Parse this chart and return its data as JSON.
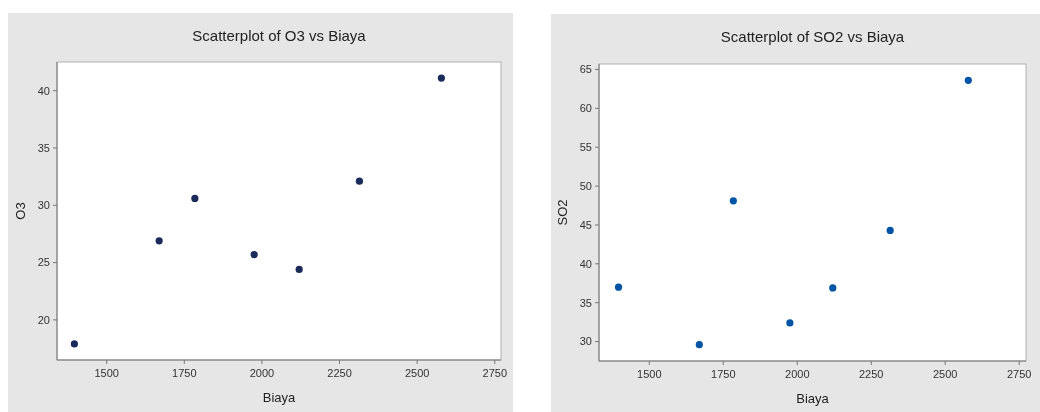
{
  "chart_data": [
    {
      "type": "scatter",
      "title": "Scatterplot of O3 vs Biaya",
      "xlabel": "Biaya",
      "ylabel": "O3",
      "x": [
        1396,
        1669,
        1784,
        1975,
        2120,
        2314,
        2578
      ],
      "series": [
        {
          "color": "#1a2a5a",
          "values": [
            17.9,
            26.9,
            30.6,
            25.7,
            24.4,
            32.1,
            41.1
          ]
        }
      ],
      "xlim": [
        1340,
        2770
      ],
      "ylim": [
        16.5,
        42.5
      ],
      "xticks": [
        1500,
        1750,
        2000,
        2250,
        2500,
        2750
      ],
      "yticks": [
        20,
        25,
        30,
        35,
        40
      ],
      "marker": "circle",
      "grid": false
    },
    {
      "type": "scatter",
      "title": "Scatterplot of SO2 vs Biaya",
      "xlabel": "Biaya",
      "ylabel": "SO2",
      "x": [
        1396,
        1669,
        1784,
        1975,
        2120,
        2314,
        2578
      ],
      "series": [
        {
          "color": "#0054a6",
          "values": [
            37.0,
            29.6,
            48.1,
            32.4,
            36.9,
            44.3,
            63.6
          ]
        }
      ],
      "xlim": [
        1330,
        2773
      ],
      "ylim": [
        27.5,
        65.7
      ],
      "xticks": [
        1500,
        1750,
        2000,
        2250,
        2500,
        2750
      ],
      "yticks": [
        30,
        35,
        40,
        45,
        50,
        55,
        60,
        65
      ],
      "marker": "circle",
      "grid": false
    }
  ]
}
